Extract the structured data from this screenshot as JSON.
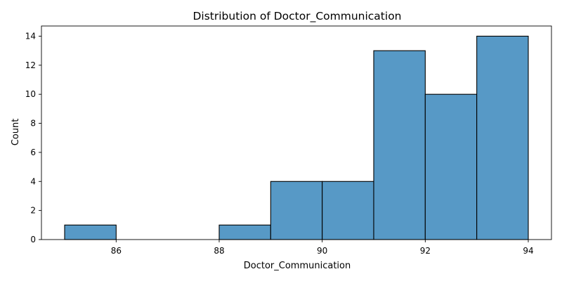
{
  "chart_data": {
    "type": "bar",
    "title": "Distribution of Doctor_Communication",
    "xlabel": "Doctor_Communication",
    "ylabel": "Count",
    "bins": [
      {
        "start": 85,
        "end": 86,
        "count": 1
      },
      {
        "start": 86,
        "end": 87,
        "count": 0
      },
      {
        "start": 87,
        "end": 88,
        "count": 0
      },
      {
        "start": 88,
        "end": 89,
        "count": 1
      },
      {
        "start": 89,
        "end": 90,
        "count": 4
      },
      {
        "start": 90,
        "end": 91,
        "count": 4
      },
      {
        "start": 91,
        "end": 92,
        "count": 13
      },
      {
        "start": 92,
        "end": 93,
        "count": 10
      },
      {
        "start": 93,
        "end": 94,
        "count": 14
      }
    ],
    "xlim": [
      84.55,
      94.45
    ],
    "ylim": [
      0,
      14.7
    ],
    "xticks": [
      86,
      88,
      90,
      92,
      94
    ],
    "yticks": [
      0,
      2,
      4,
      6,
      8,
      10,
      12,
      14
    ],
    "bar_color": "#5799c6",
    "edge_color": "#000000",
    "grid": false,
    "legend": "none"
  }
}
